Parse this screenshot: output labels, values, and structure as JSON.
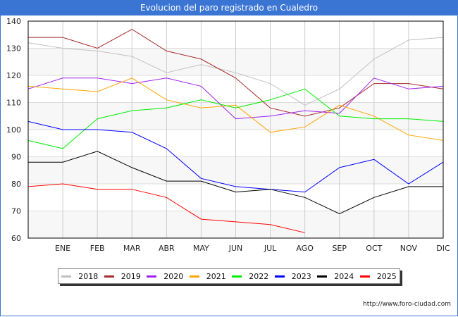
{
  "header": {
    "title": "Evolucion del paro registrado en Cualedro"
  },
  "footer": {
    "url": "http://www.foro-ciudad.com"
  },
  "chart_data": {
    "type": "line",
    "title": "Evolucion del paro registrado en Cualedro",
    "xlabel": "",
    "ylabel": "",
    "categories": [
      "",
      "ENE",
      "FEB",
      "MAR",
      "ABR",
      "MAY",
      "JUN",
      "JUL",
      "AGO",
      "SEP",
      "OCT",
      "NOV",
      "DIC"
    ],
    "ylim": [
      60,
      140
    ],
    "yticks": [
      60,
      70,
      80,
      90,
      100,
      110,
      120,
      130,
      140
    ],
    "grid": true,
    "legend_position": "bottom",
    "series": [
      {
        "name": "2018",
        "color": "#c0c0c0",
        "values": [
          132,
          130,
          129,
          127,
          121,
          124,
          121,
          117,
          109,
          115,
          126,
          133,
          134
        ]
      },
      {
        "name": "2019",
        "color": "#a52a2a",
        "values": [
          134,
          134,
          130,
          137,
          129,
          126,
          119,
          108,
          105,
          108,
          117,
          117,
          115
        ]
      },
      {
        "name": "2020",
        "color": "#a020f0",
        "values": [
          115,
          119,
          119,
          117,
          119,
          116,
          104,
          105,
          107,
          106,
          119,
          115,
          116
        ]
      },
      {
        "name": "2021",
        "color": "#ffa500",
        "values": [
          116,
          115,
          114,
          119,
          111,
          108,
          109,
          99,
          101,
          109,
          105,
          98,
          96
        ]
      },
      {
        "name": "2022",
        "color": "#00ee00",
        "values": [
          96,
          93,
          104,
          107,
          108,
          111,
          108,
          111,
          115,
          105,
          104,
          104,
          103
        ]
      },
      {
        "name": "2023",
        "color": "#0000ff",
        "values": [
          103,
          100,
          100,
          99,
          93,
          82,
          79,
          78,
          77,
          86,
          89,
          80,
          88
        ]
      },
      {
        "name": "2024",
        "color": "#000000",
        "values": [
          88,
          88,
          92,
          86,
          81,
          81,
          77,
          78,
          75,
          69,
          75,
          79,
          79
        ]
      },
      {
        "name": "2025",
        "color": "#ff0000",
        "values": [
          79,
          80,
          78,
          78,
          75,
          67,
          66,
          65,
          62,
          null,
          null,
          null,
          null
        ]
      }
    ]
  }
}
